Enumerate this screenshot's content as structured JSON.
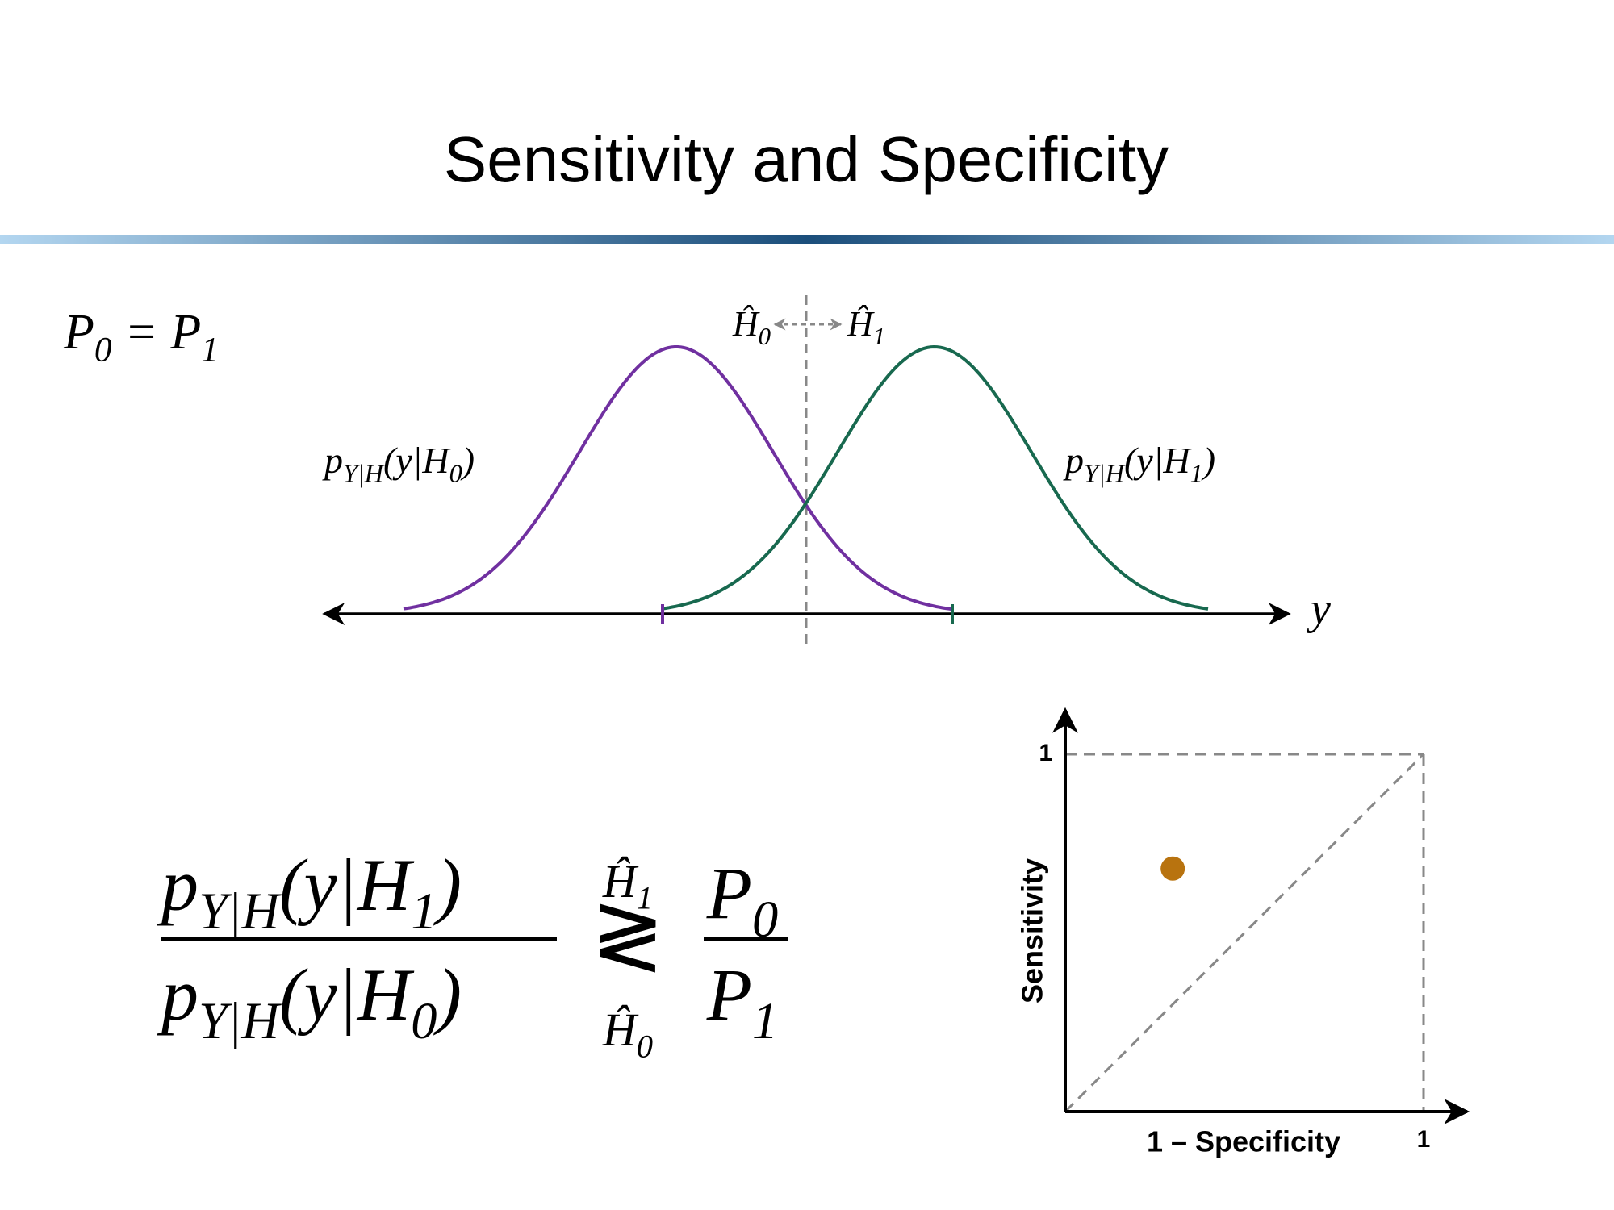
{
  "title": "Sensitivity and Specificity",
  "prior_condition": [
    {
      "t": "P"
    },
    {
      "sub": "0"
    },
    {
      "t": " = P"
    },
    {
      "sub": "1"
    }
  ],
  "density_plot": {
    "decision_left": [
      {
        "t": "Ĥ"
      },
      {
        "sub": "0"
      }
    ],
    "decision_right": [
      {
        "t": "Ĥ"
      },
      {
        "sub": "1"
      }
    ],
    "label_h0": [
      {
        "t": "p"
      },
      {
        "sub": "Y|H"
      },
      {
        "t": "(y|H"
      },
      {
        "sub": "0"
      },
      {
        "t": ")"
      }
    ],
    "label_h1": [
      {
        "t": "p"
      },
      {
        "sub": "Y|H"
      },
      {
        "t": "(y|H"
      },
      {
        "sub": "1"
      },
      {
        "t": ")"
      }
    ],
    "axis_label": "y",
    "color_h0": "#7030a0",
    "color_h1": "#18694f"
  },
  "likelihood_ratio_test": {
    "numerator": [
      {
        "t": "p"
      },
      {
        "sub": "Y|H"
      },
      {
        "t": "(y|H"
      },
      {
        "sub": "1"
      },
      {
        "t": ")"
      }
    ],
    "denominator": [
      {
        "t": "p"
      },
      {
        "sub": "Y|H"
      },
      {
        "t": "(y|H"
      },
      {
        "sub": "0"
      },
      {
        "t": ")"
      }
    ],
    "upper_decision": [
      {
        "t": "Ĥ"
      },
      {
        "sub": "1"
      }
    ],
    "relation": "≷",
    "lower_decision": [
      {
        "t": "Ĥ"
      },
      {
        "sub": "0"
      }
    ],
    "threshold_numerator": [
      {
        "t": "P"
      },
      {
        "sub": "0"
      }
    ],
    "threshold_denominator": [
      {
        "t": "P"
      },
      {
        "sub": "1"
      }
    ]
  },
  "chart_data": {
    "type": "scatter",
    "xlabel": "1 – Specificity",
    "ylabel": "Sensitivity",
    "xlim": [
      0,
      1
    ],
    "ylim": [
      0,
      1
    ],
    "xticks": [
      1
    ],
    "yticks": [
      1
    ],
    "x": [
      0.3
    ],
    "values": [
      0.68
    ],
    "color": "#b8730f"
  }
}
